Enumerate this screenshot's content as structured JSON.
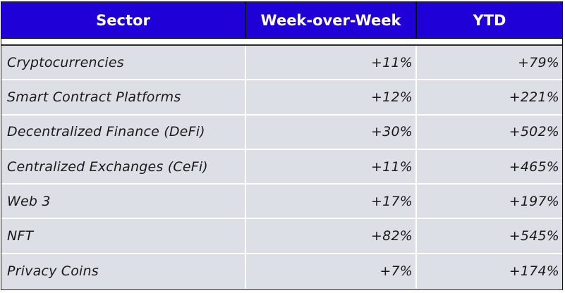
{
  "table": {
    "headers": [
      "Sector",
      "Week-over-Week",
      "YTD"
    ],
    "colors": {
      "header_bg": "#1f00d6",
      "header_text": "#ffffff",
      "row_bg": "#dcdfe5"
    },
    "rows": [
      {
        "sector": "Cryptocurrencies",
        "wow": "+11%",
        "ytd": "+79%"
      },
      {
        "sector": "Smart Contract Platforms",
        "wow": "+12%",
        "ytd": "+221%"
      },
      {
        "sector": "Decentralized Finance (DeFi)",
        "wow": "+30%",
        "ytd": "+502%"
      },
      {
        "sector": "Centralized Exchanges (CeFi)",
        "wow": "+11%",
        "ytd": "+465%"
      },
      {
        "sector": "Web 3",
        "wow": "+17%",
        "ytd": "+197%"
      },
      {
        "sector": "NFT",
        "wow": "+82%",
        "ytd": "+545%"
      },
      {
        "sector": "Privacy Coins",
        "wow": "+7%",
        "ytd": "+174%"
      }
    ]
  }
}
